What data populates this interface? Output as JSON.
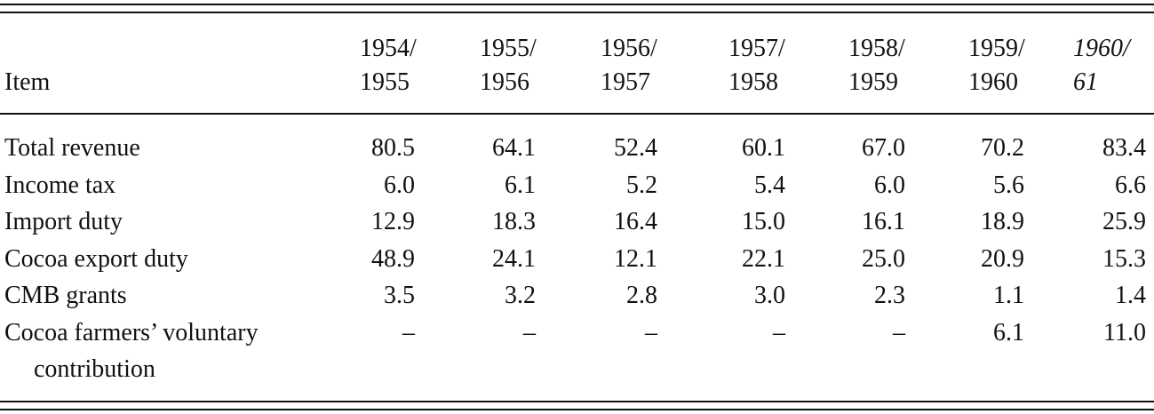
{
  "table": {
    "header": {
      "item": "Item",
      "years": [
        [
          "1954/",
          "1955"
        ],
        [
          "1955/",
          "1956"
        ],
        [
          "1956/",
          "1957"
        ],
        [
          "1957/",
          "1958"
        ],
        [
          "1958/",
          "1959"
        ],
        [
          "1959/",
          "1960"
        ],
        [
          "1960/",
          "61"
        ]
      ]
    },
    "rows": [
      [
        "Total revenue",
        "80.5",
        "64.1",
        "52.4",
        "60.1",
        "67.0",
        "70.2",
        "83.4"
      ],
      [
        "Income tax",
        "6.0",
        "6.1",
        "5.2",
        "5.4",
        "6.0",
        "5.6",
        "6.6"
      ],
      [
        "Import duty",
        "12.9",
        "18.3",
        "16.4",
        "15.0",
        "16.1",
        "18.9",
        "25.9"
      ],
      [
        "Cocoa export duty",
        "48.9",
        "24.1",
        "12.1",
        "22.1",
        "25.0",
        "20.9",
        "15.3"
      ],
      [
        "CMB grants",
        "3.5",
        "3.2",
        "2.8",
        "3.0",
        "2.3",
        "1.1",
        "1.4"
      ],
      [
        "Cocoa farmers’ voluntary contribution",
        "–",
        "–",
        "–",
        "–",
        "–",
        "6.1",
        "11.0"
      ]
    ]
  }
}
